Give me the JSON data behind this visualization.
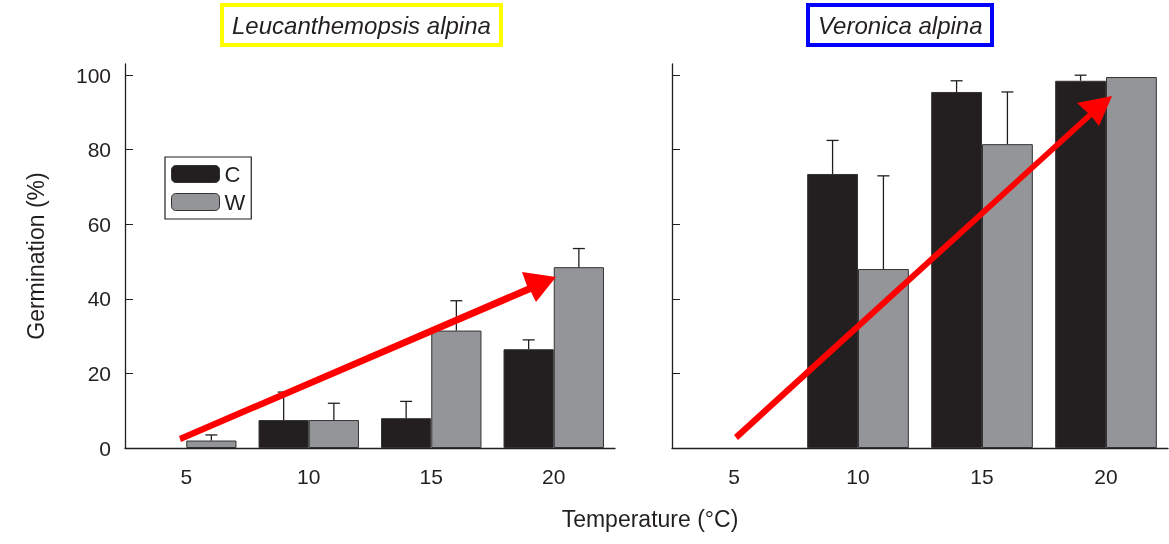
{
  "chart_data": [
    {
      "type": "bar",
      "title": "Leucanthemopsis alpina",
      "xlabel": "Temperature (°C)",
      "ylabel": "Germination (%)",
      "categories": [
        "5",
        "10",
        "15",
        "20"
      ],
      "series": [
        {
          "name": "C",
          "color": "#231f20",
          "values": [
            0,
            7.5,
            8,
            26.5
          ],
          "errors": [
            null,
            [
              7.5,
              15
            ],
            [
              8,
              12.5
            ],
            [
              26.5,
              29
            ]
          ]
        },
        {
          "name": "W",
          "color": "#939598",
          "values": [
            2,
            7.5,
            31.5,
            48.5
          ],
          "errors": [
            [
              2,
              3.5
            ],
            [
              7.5,
              12
            ],
            [
              31.5,
              39.5
            ],
            [
              48.5,
              53.5
            ]
          ]
        }
      ],
      "ylim": [
        0,
        103
      ],
      "yticks": [
        0,
        20,
        40,
        60,
        80,
        100
      ],
      "legend": "top left",
      "grid": false
    },
    {
      "type": "bar",
      "title": "Veronica alpina",
      "categories": [
        "5",
        "10",
        "15",
        "20"
      ],
      "series": [
        {
          "color": "#231f20",
          "values": [
            0,
            73.5,
            95.5,
            98.5
          ],
          "errors": [
            null,
            [
              73.5,
              82.5
            ],
            [
              95.5,
              98.5
            ],
            [
              98.5,
              100
            ]
          ]
        },
        {
          "color": "#939598",
          "values": [
            0,
            48,
            81.5,
            99.5
          ],
          "errors": [
            null,
            [
              48,
              73
            ],
            [
              81.5,
              95.5
            ],
            null
          ]
        }
      ],
      "ylim": [
        0,
        103
      ],
      "yticks": [
        0,
        20,
        40,
        60,
        80,
        100
      ],
      "legend": false,
      "tick_labels": "x",
      "grid": false
    }
  ]
}
